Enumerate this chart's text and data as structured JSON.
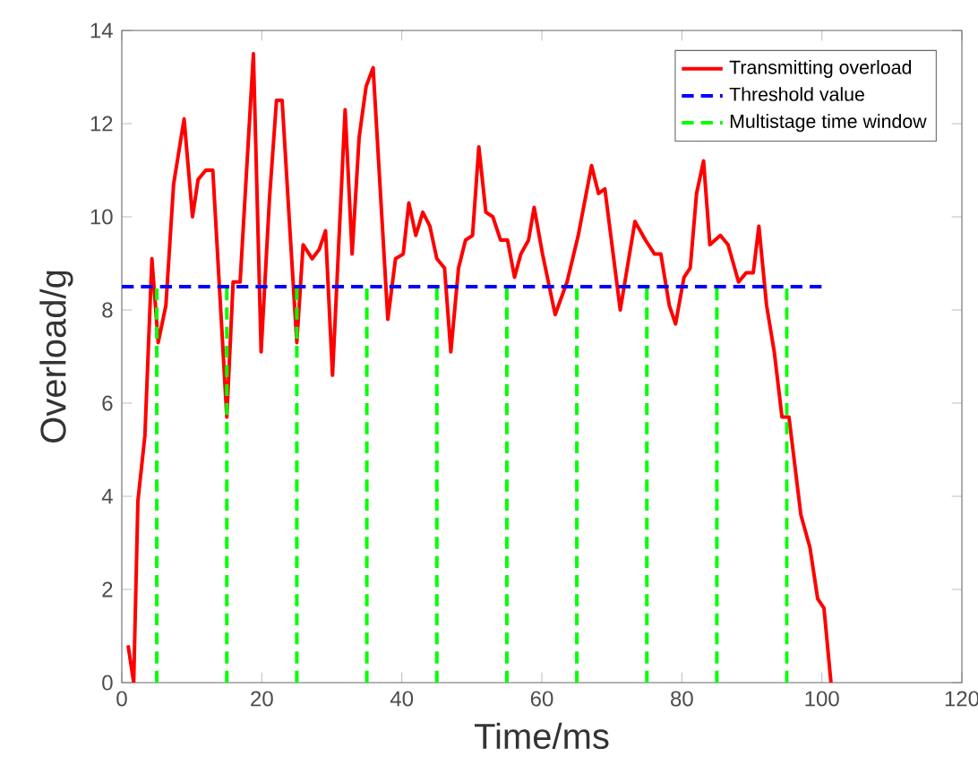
{
  "chart_data": {
    "type": "line",
    "xlabel": "Time/ms",
    "ylabel": "Overload/g",
    "xlim": [
      0,
      120
    ],
    "ylim": [
      0,
      14
    ],
    "xticks": [
      0,
      20,
      40,
      60,
      80,
      100,
      120
    ],
    "yticks": [
      0,
      2,
      4,
      6,
      8,
      10,
      12,
      14
    ],
    "legend": "top right",
    "series": [
      {
        "name": "Transmitting overload",
        "color": "#ff0000",
        "line_style": "solid",
        "x": [
          0.9,
          1.7,
          2.3,
          3.3,
          4.3,
          5.2,
          6.3,
          7.4,
          8.9,
          10.1,
          10.9,
          12.0,
          13.0,
          15.0,
          15.9,
          16.9,
          18.8,
          19.9,
          21.1,
          22.1,
          22.9,
          23.9,
          25.0,
          25.9,
          27.2,
          28.2,
          29.1,
          30.1,
          31.9,
          32.9,
          33.9,
          34.9,
          35.9,
          38.0,
          39.1,
          40.2,
          41.0,
          42.0,
          43.0,
          44.0,
          45.0,
          46.1,
          47.0,
          48.1,
          49.1,
          50.1,
          51.0,
          52.0,
          53.0,
          54.1,
          55.1,
          56.1,
          57.0,
          58.1,
          58.9,
          60.1,
          61.9,
          63.6,
          65.2,
          67.1,
          68.1,
          69.0,
          71.2,
          73.3,
          74.8,
          76.1,
          77.0,
          78.2,
          79.1,
          80.3,
          81.2,
          82.1,
          83.1,
          84.0,
          85.5,
          86.6,
          88.1,
          89.2,
          90.2,
          91.0,
          92.1,
          93.2,
          94.3,
          95.3,
          97.0,
          98.3,
          99.4,
          100.3,
          101.3
        ],
        "values": [
          0.8,
          0,
          3.9,
          5.3,
          9.1,
          7.3,
          8.1,
          10.7,
          12.1,
          10.0,
          10.8,
          11.0,
          11.0,
          5.7,
          8.6,
          8.6,
          13.5,
          7.1,
          10.4,
          12.5,
          12.5,
          10.0,
          7.3,
          9.4,
          9.1,
          9.3,
          9.7,
          6.6,
          12.3,
          9.2,
          11.7,
          12.8,
          13.2,
          7.8,
          9.1,
          9.2,
          10.3,
          9.6,
          10.1,
          9.8,
          9.1,
          8.9,
          7.1,
          8.9,
          9.5,
          9.6,
          11.5,
          10.1,
          10.0,
          9.5,
          9.5,
          8.7,
          9.2,
          9.5,
          10.2,
          9.2,
          7.9,
          8.6,
          9.6,
          11.1,
          10.5,
          10.6,
          8.0,
          9.9,
          9.5,
          9.2,
          9.2,
          8.1,
          7.7,
          8.7,
          8.9,
          10.5,
          11.2,
          9.4,
          9.6,
          9.4,
          8.6,
          8.8,
          8.8,
          9.8,
          8.1,
          7.1,
          5.7,
          5.7,
          3.6,
          2.9,
          1.8,
          1.6,
          0
        ]
      },
      {
        "name": "Threshold value",
        "color": "#0000ff",
        "line_style": "dashed",
        "x": [
          0,
          100
        ],
        "values": [
          8.5,
          8.5
        ]
      },
      {
        "name": "Multistage time window",
        "color": "#00ff00",
        "line_style": "dashed",
        "x": [
          5,
          5,
          null,
          15,
          15,
          null,
          25,
          25,
          null,
          35,
          35,
          null,
          45,
          45,
          null,
          55,
          55,
          null,
          65,
          65,
          null,
          75,
          75,
          null,
          85,
          85,
          null,
          95,
          95
        ],
        "values": [
          0,
          8.5,
          null,
          0,
          8.5,
          null,
          0,
          8.5,
          null,
          0,
          8.5,
          null,
          0,
          8.5,
          null,
          0,
          8.5,
          null,
          0,
          8.5,
          null,
          0,
          8.5,
          null,
          0,
          8.5,
          null,
          0,
          8.5
        ]
      }
    ]
  }
}
